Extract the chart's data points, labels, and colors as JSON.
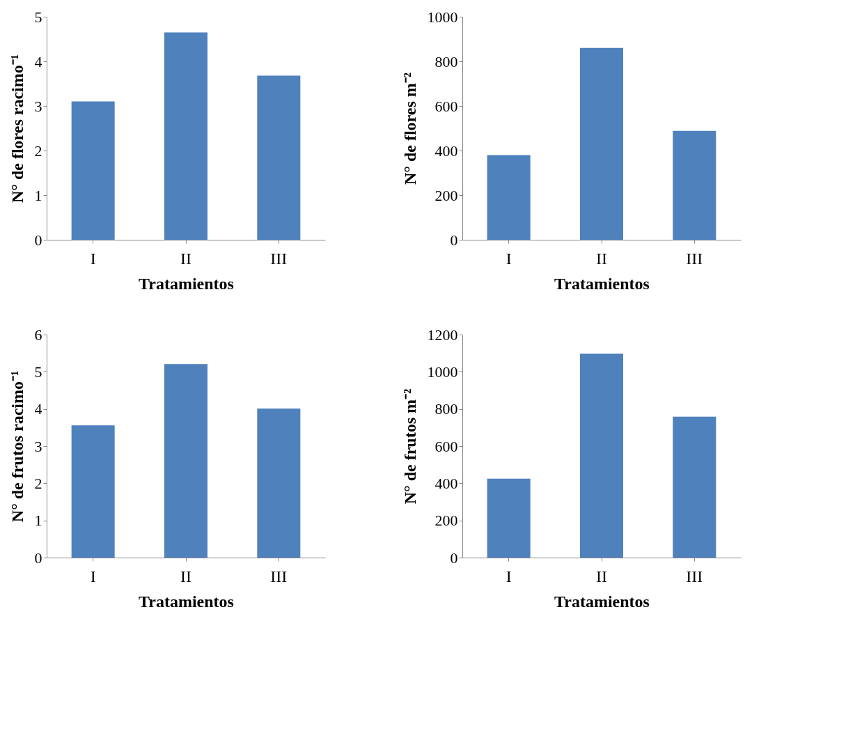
{
  "chart_data": [
    {
      "type": "bar",
      "categories": [
        "I",
        "II",
        "III"
      ],
      "values": [
        3.1,
        4.65,
        3.68
      ],
      "color": "#4f81bd",
      "ylim": [
        0,
        5
      ],
      "yticks": [
        0,
        1,
        2,
        3,
        4,
        5
      ],
      "xlabel": "Tratamientos",
      "ylabel": "N° de flores racimo⁻¹"
    },
    {
      "type": "bar",
      "categories": [
        "I",
        "II",
        "III"
      ],
      "values": [
        380,
        860,
        488
      ],
      "color": "#4f81bd",
      "ylim": [
        0,
        1000
      ],
      "yticks": [
        0,
        200,
        400,
        600,
        800,
        1000
      ],
      "xlabel": "Tratamientos",
      "ylabel": "N° de flores m⁻²"
    },
    {
      "type": "bar",
      "categories": [
        "I",
        "II",
        "III"
      ],
      "values": [
        3.56,
        5.21,
        4.01
      ],
      "color": "#4f81bd",
      "ylim": [
        0,
        6
      ],
      "yticks": [
        0,
        1,
        2,
        3,
        4,
        5,
        6
      ],
      "xlabel": "Tratamientos",
      "ylabel": "N° de frutos racimo⁻¹"
    },
    {
      "type": "bar",
      "categories": [
        "I",
        "II",
        "III"
      ],
      "values": [
        425,
        1097,
        758
      ],
      "color": "#4f81bd",
      "ylim": [
        0,
        1200
      ],
      "yticks": [
        0,
        200,
        400,
        600,
        800,
        1000,
        1200
      ],
      "xlabel": "Tratamientos",
      "ylabel": "N° de frutos m⁻²"
    }
  ]
}
